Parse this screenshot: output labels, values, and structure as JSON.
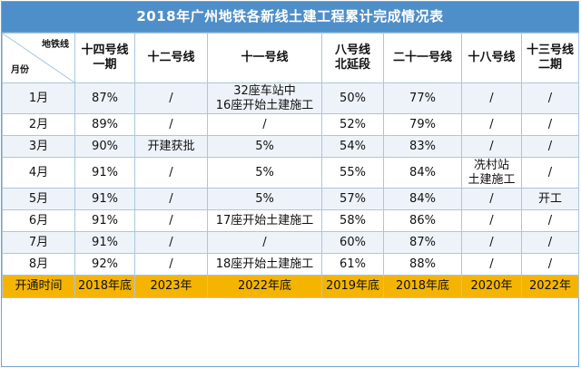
{
  "title": "2018年广州地铁各新线土建工程累计完成情况表",
  "corner": {
    "top": "地铁线",
    "bottom": "月份"
  },
  "columns": [
    [
      "十四号线",
      "一期"
    ],
    [
      "十二号线"
    ],
    [
      "十一号线"
    ],
    [
      "八号线",
      "北延段"
    ],
    [
      "二十一号线"
    ],
    [
      "十八号线"
    ],
    [
      "十三号线",
      "二期"
    ]
  ],
  "rows": [
    {
      "month": "1月",
      "cells": [
        [
          "87%"
        ],
        [
          "/"
        ],
        [
          "32座车站中",
          "16座开始土建施工"
        ],
        [
          "50%"
        ],
        [
          "77%"
        ],
        [
          "/"
        ],
        [
          "/"
        ]
      ]
    },
    {
      "month": "2月",
      "cells": [
        [
          "89%"
        ],
        [
          "/"
        ],
        [
          "/"
        ],
        [
          "52%"
        ],
        [
          "79%"
        ],
        [
          "/"
        ],
        [
          "/"
        ]
      ]
    },
    {
      "month": "3月",
      "cells": [
        [
          "90%"
        ],
        [
          "开建获批"
        ],
        [
          "5%"
        ],
        [
          "54%"
        ],
        [
          "83%"
        ],
        [
          "/"
        ],
        [
          "/"
        ]
      ]
    },
    {
      "month": "4月",
      "cells": [
        [
          "91%"
        ],
        [
          "/"
        ],
        [
          "5%"
        ],
        [
          "55%"
        ],
        [
          "84%"
        ],
        [
          "冼村站",
          "土建施工"
        ],
        [
          "/"
        ]
      ]
    },
    {
      "month": "5月",
      "cells": [
        [
          "91%"
        ],
        [
          "/"
        ],
        [
          "5%"
        ],
        [
          "57%"
        ],
        [
          "84%"
        ],
        [
          "/"
        ],
        [
          "开工"
        ]
      ]
    },
    {
      "month": "6月",
      "cells": [
        [
          "91%"
        ],
        [
          "/"
        ],
        [
          "17座开始土建施工"
        ],
        [
          "58%"
        ],
        [
          "86%"
        ],
        [
          "/"
        ],
        [
          "/"
        ]
      ]
    },
    {
      "month": "7月",
      "cells": [
        [
          "91%"
        ],
        [
          "/"
        ],
        [
          "/"
        ],
        [
          "60%"
        ],
        [
          "87%"
        ],
        [
          "/"
        ],
        [
          "/"
        ]
      ]
    },
    {
      "month": "8月",
      "cells": [
        [
          "92%"
        ],
        [
          "/"
        ],
        [
          "18座开始土建施工"
        ],
        [
          "61%"
        ],
        [
          "88%"
        ],
        [
          "/"
        ],
        [
          "/"
        ]
      ]
    }
  ],
  "footer": {
    "label": "开通时间",
    "cells": [
      "2018年底",
      "2023年",
      "2022年底",
      "2019年底",
      "2018年底",
      "2020年",
      "2022年"
    ]
  },
  "colors": {
    "title_bg": "#4f8fc9",
    "row_alt": "#eef3f9",
    "footer_bg": "#f5b400",
    "grid": "#aac6df"
  }
}
